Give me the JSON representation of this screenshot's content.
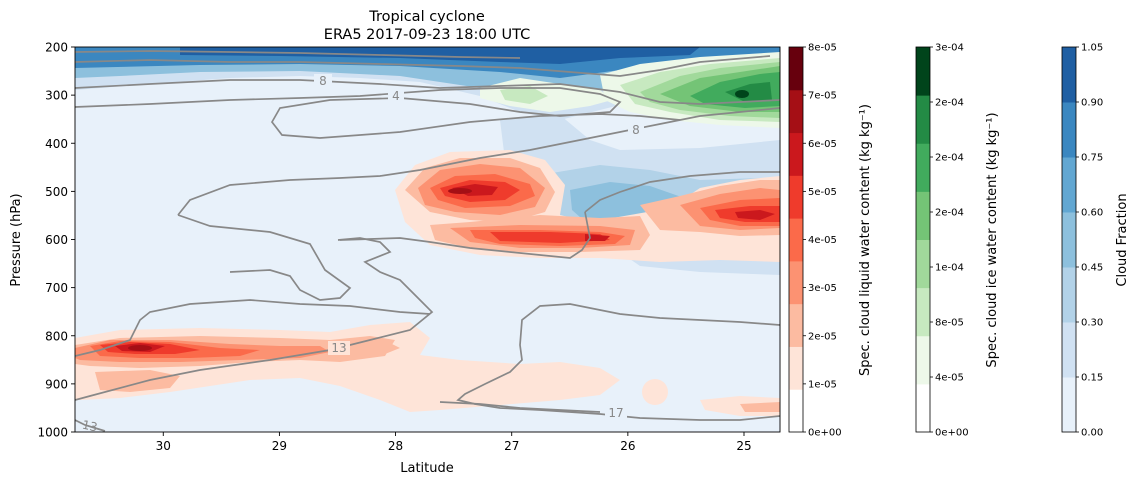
{
  "chart_data": {
    "type": "contour",
    "title": "Tropical cyclone",
    "subtitle": "ERA5 2017-09-23 18:00 UTC",
    "xlabel": "Latitude",
    "ylabel": "Pressure (hPa)",
    "xlim": [
      30.76,
      24.69
    ],
    "ylim": [
      1000,
      200
    ],
    "x_ticks": [
      30,
      29,
      28,
      27,
      26,
      25
    ],
    "y_ticks": [
      200,
      300,
      400,
      500,
      600,
      700,
      800,
      900,
      1000
    ],
    "grid": false,
    "colorbars": [
      {
        "label": "Spec. cloud liquid water content (kg kg⁻¹)",
        "colormap": "Reds",
        "ticks": [
          "0e+00",
          "1e-05",
          "2e-05",
          "3e-05",
          "4e-05",
          "5e-05",
          "6e-05",
          "7e-05",
          "8e-05"
        ],
        "colors": [
          "#ffffff",
          "#fee4d8",
          "#fcbba1",
          "#fc9272",
          "#fb6a4a",
          "#ef3b2c",
          "#cb181d",
          "#a50f15",
          "#67000d"
        ]
      },
      {
        "label": "Spec. cloud ice water content (kg kg⁻¹)",
        "colormap": "Greens",
        "ticks": [
          "0e+00",
          "4e-05",
          "8e-05",
          "1e-04",
          "2e-04",
          "2e-04",
          "2e-04",
          "3e-04"
        ],
        "colors": [
          "#ffffff",
          "#edf8e9",
          "#c7e9c0",
          "#a1d99b",
          "#74c476",
          "#41ab5d",
          "#238b45",
          "#00441b"
        ]
      },
      {
        "label": "Cloud Fraction",
        "colormap": "Blues",
        "ticks": [
          "0.00",
          "0.15",
          "0.30",
          "0.45",
          "0.60",
          "0.75",
          "0.90",
          "1.05"
        ],
        "colors": [
          "#e8f1fa",
          "#d0e1f2",
          "#b2d2e8",
          "#8dc0dd",
          "#62a7d2",
          "#3b87c0",
          "#1f5fa3"
        ]
      }
    ],
    "contour_labels": [
      {
        "text": "8",
        "lat": 28.62,
        "p": 275
      },
      {
        "text": "4",
        "lat": 27.98,
        "p": 305
      },
      {
        "text": "8",
        "lat": 25.93,
        "p": 376
      },
      {
        "text": "13",
        "lat": 28.5,
        "p": 835
      },
      {
        "text": "17",
        "lat": 26.1,
        "p": 968
      },
      {
        "text": "13",
        "lat": 30.5,
        "p": 992
      }
    ],
    "liquid_maxima_regions": [
      {
        "lat": 30.15,
        "p": 820,
        "level": "7e-05"
      },
      {
        "lat": 27.4,
        "p": 495,
        "level": "7e-05"
      },
      {
        "lat": 26.1,
        "p": 595,
        "level": "6e-05"
      },
      {
        "lat": 24.95,
        "p": 548,
        "level": "7e-05"
      }
    ],
    "ice_maxima_regions": [
      {
        "lat": 25.0,
        "p": 290,
        "level": "3e-04"
      }
    ]
  }
}
